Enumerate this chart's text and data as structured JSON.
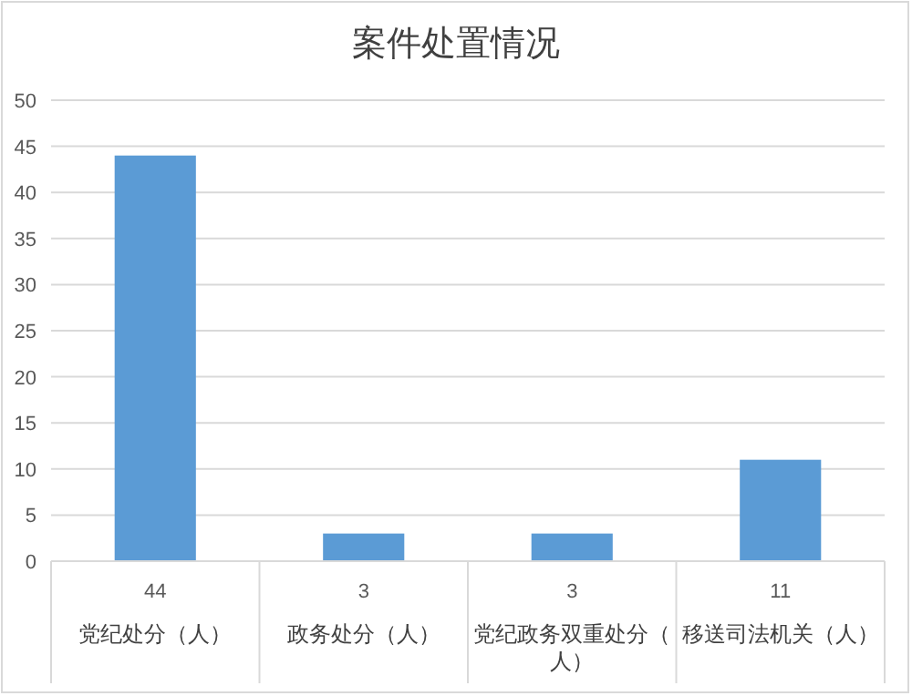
{
  "chart_data": {
    "type": "bar",
    "title": "案件处置情况",
    "categories": [
      "党纪处分（人）",
      "政务处分（人）",
      "党纪政务双重处分（人）",
      "移送司法机关（人）"
    ],
    "values": [
      44,
      3,
      3,
      11
    ],
    "color": "#5b9bd5",
    "ylim": [
      0,
      50
    ],
    "yticks": [
      0,
      5,
      10,
      15,
      20,
      25,
      30,
      35,
      40,
      45,
      50
    ],
    "grid": "y",
    "data_labels": true
  }
}
